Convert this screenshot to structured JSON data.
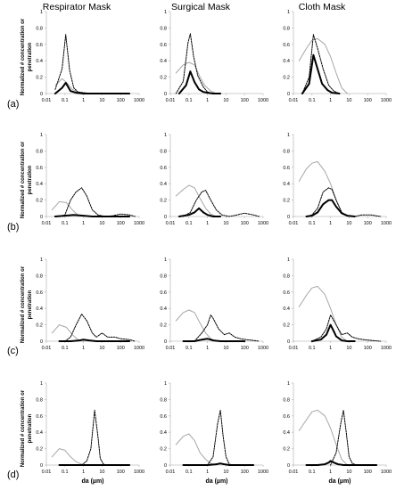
{
  "columns": [
    "Respirator Mask",
    "Surgical Mask",
    "Cloth Mask"
  ],
  "row_labels": [
    "(a)",
    "(b)",
    "(c)",
    "(d)"
  ],
  "ylabel": "Normalized # concentration or penetration",
  "xlabel": "da (µm)",
  "x_ticks": [
    "0.01",
    "0.1",
    "1",
    "10",
    "100",
    "1000"
  ],
  "y_ticks": [
    "0",
    "0.2",
    "0.4",
    "0.6",
    "0.8",
    "1"
  ],
  "colors": {
    "gray": "#a6a6a6",
    "dotted": "#000000",
    "black": "#000000",
    "axis": "#bfbfbf"
  },
  "chart_data": [
    {
      "row": 0,
      "col": 0,
      "type": "line",
      "title": "Respirator Mask",
      "xlabel": "",
      "ylabel": "Normalized # concentration or penetration",
      "xscale": "log",
      "xlim": [
        0.01,
        1000
      ],
      "ylim": [
        0,
        1
      ],
      "series": [
        {
          "style": "gray",
          "x": [
            0.03,
            0.07,
            0.13,
            0.25,
            0.5,
            1,
            3
          ],
          "y": [
            0.1,
            0.18,
            0.13,
            0.05,
            0.02,
            0.005,
            0
          ]
        },
        {
          "style": "dotted",
          "x": [
            0.03,
            0.07,
            0.11,
            0.18,
            0.3,
            0.5,
            1,
            3
          ],
          "y": [
            0.05,
            0.3,
            0.72,
            0.28,
            0.07,
            0.02,
            0.01,
            0
          ]
        },
        {
          "style": "black",
          "x": [
            0.03,
            0.07,
            0.11,
            0.2,
            0.4,
            1,
            3,
            30,
            300
          ],
          "y": [
            0,
            0.07,
            0.13,
            0.03,
            0.01,
            0,
            0,
            0,
            0
          ]
        }
      ]
    },
    {
      "row": 0,
      "col": 1,
      "type": "line",
      "title": "Surgical Mask",
      "xlabel": "",
      "ylabel": "Normalized # concentration or penetration",
      "xscale": "log",
      "xlim": [
        0.01,
        1000
      ],
      "ylim": [
        0,
        1
      ],
      "series": [
        {
          "style": "gray",
          "x": [
            0.02,
            0.05,
            0.1,
            0.2,
            0.4,
            0.7,
            1.5,
            3
          ],
          "y": [
            0.25,
            0.35,
            0.38,
            0.35,
            0.2,
            0.1,
            0.03,
            0
          ]
        },
        {
          "style": "dotted",
          "x": [
            0.02,
            0.05,
            0.09,
            0.12,
            0.18,
            0.3,
            0.6,
            1,
            2
          ],
          "y": [
            0,
            0.15,
            0.62,
            0.73,
            0.45,
            0.22,
            0.08,
            0.02,
            0
          ]
        },
        {
          "style": "black",
          "x": [
            0.03,
            0.07,
            0.12,
            0.2,
            0.35,
            0.6,
            1,
            2,
            5
          ],
          "y": [
            0,
            0.1,
            0.27,
            0.14,
            0.05,
            0.02,
            0.01,
            0,
            0
          ]
        }
      ]
    },
    {
      "row": 0,
      "col": 2,
      "type": "line",
      "title": "Cloth Mask",
      "xlabel": "",
      "ylabel": "Normalized # concentration or penetration",
      "xscale": "log",
      "xlim": [
        0.01,
        1000
      ],
      "ylim": [
        0,
        1
      ],
      "series": [
        {
          "style": "gray",
          "x": [
            0.02,
            0.05,
            0.1,
            0.2,
            0.5,
            1,
            2,
            4,
            8
          ],
          "y": [
            0.4,
            0.55,
            0.65,
            0.67,
            0.6,
            0.45,
            0.25,
            0.07,
            0
          ]
        },
        {
          "style": "dotted",
          "x": [
            0.03,
            0.07,
            0.12,
            0.2,
            0.4,
            0.8,
            1.5,
            3
          ],
          "y": [
            0,
            0.2,
            0.72,
            0.55,
            0.3,
            0.1,
            0.03,
            0
          ]
        },
        {
          "style": "black",
          "x": [
            0.03,
            0.07,
            0.12,
            0.2,
            0.35,
            0.7,
            1.2,
            3
          ],
          "y": [
            0,
            0.12,
            0.47,
            0.3,
            0.12,
            0.04,
            0.01,
            0
          ]
        }
      ]
    },
    {
      "row": 1,
      "col": 0,
      "type": "line",
      "title": "Respirator Mask",
      "xlabel": "",
      "ylabel": "Normalized # concentration or penetration",
      "xscale": "log",
      "xlim": [
        0.01,
        1000
      ],
      "ylim": [
        0,
        1
      ],
      "series": [
        {
          "style": "gray",
          "x": [
            0.02,
            0.05,
            0.12,
            0.25,
            0.5,
            1
          ],
          "y": [
            0.08,
            0.18,
            0.17,
            0.08,
            0.02,
            0
          ]
        },
        {
          "style": "dotted",
          "x": [
            0.05,
            0.1,
            0.2,
            0.4,
            0.8,
            1.5,
            3,
            6,
            15,
            40,
            100,
            300,
            600
          ],
          "y": [
            0,
            0.02,
            0.2,
            0.3,
            0.35,
            0.25,
            0.08,
            0.02,
            0,
            0.01,
            0.03,
            0.02,
            0
          ]
        },
        {
          "style": "black",
          "x": [
            0.03,
            0.1,
            0.3,
            1,
            3,
            10,
            30,
            100,
            300
          ],
          "y": [
            0,
            0.01,
            0.02,
            0.01,
            0,
            0,
            0,
            0,
            0
          ]
        }
      ]
    },
    {
      "row": 1,
      "col": 1,
      "type": "line",
      "title": "Surgical Mask",
      "xlabel": "",
      "ylabel": "Normalized # concentration or penetration",
      "xscale": "log",
      "xlim": [
        0.01,
        1000
      ],
      "ylim": [
        0,
        1
      ],
      "series": [
        {
          "style": "gray",
          "x": [
            0.02,
            0.05,
            0.1,
            0.2,
            0.4,
            0.8,
            1.5,
            3
          ],
          "y": [
            0.25,
            0.33,
            0.38,
            0.35,
            0.22,
            0.1,
            0.03,
            0
          ]
        },
        {
          "style": "dotted",
          "x": [
            0.05,
            0.12,
            0.25,
            0.5,
            0.8,
            1.5,
            3,
            6,
            15,
            40,
            100,
            300,
            600
          ],
          "y": [
            0,
            0.05,
            0.2,
            0.3,
            0.32,
            0.2,
            0.08,
            0.02,
            0,
            0.02,
            0.04,
            0.02,
            0
          ]
        },
        {
          "style": "black",
          "x": [
            0.03,
            0.1,
            0.2,
            0.35,
            0.6,
            1,
            2,
            5
          ],
          "y": [
            0,
            0.02,
            0.05,
            0.1,
            0.05,
            0.02,
            0,
            0
          ]
        }
      ]
    },
    {
      "row": 1,
      "col": 2,
      "type": "line",
      "title": "Cloth Mask",
      "xlabel": "",
      "ylabel": "Normalized # concentration or penetration",
      "xscale": "log",
      "xlim": [
        0.01,
        1000
      ],
      "ylim": [
        0,
        1
      ],
      "series": [
        {
          "style": "gray",
          "x": [
            0.02,
            0.05,
            0.1,
            0.2,
            0.5,
            1,
            2,
            4,
            8
          ],
          "y": [
            0.43,
            0.58,
            0.65,
            0.67,
            0.55,
            0.4,
            0.2,
            0.05,
            0
          ]
        },
        {
          "style": "dotted",
          "x": [
            0.05,
            0.1,
            0.2,
            0.4,
            0.8,
            1.2,
            2,
            4,
            8,
            20,
            50,
            150,
            500
          ],
          "y": [
            0,
            0.02,
            0.1,
            0.3,
            0.35,
            0.33,
            0.2,
            0.05,
            0.01,
            0,
            0.02,
            0.02,
            0
          ]
        },
        {
          "style": "black",
          "x": [
            0.05,
            0.1,
            0.2,
            0.4,
            0.8,
            1.2,
            2,
            4,
            8,
            20
          ],
          "y": [
            0,
            0.01,
            0.05,
            0.15,
            0.2,
            0.2,
            0.12,
            0.04,
            0.01,
            0
          ]
        }
      ]
    },
    {
      "row": 2,
      "col": 0,
      "type": "line",
      "title": "Respirator Mask",
      "xlabel": "",
      "ylabel": "Normalized # concentration or penetration",
      "xscale": "log",
      "xlim": [
        0.01,
        1000
      ],
      "ylim": [
        0,
        1
      ],
      "series": [
        {
          "style": "gray",
          "x": [
            0.02,
            0.05,
            0.12,
            0.25,
            0.5,
            1
          ],
          "y": [
            0.1,
            0.2,
            0.17,
            0.08,
            0.02,
            0
          ]
        },
        {
          "style": "dotted",
          "x": [
            0.1,
            0.2,
            0.4,
            0.8,
            1.5,
            3,
            5,
            10,
            20,
            50,
            100,
            300,
            600
          ],
          "y": [
            0,
            0.05,
            0.2,
            0.33,
            0.25,
            0.1,
            0.05,
            0.1,
            0.05,
            0.05,
            0.03,
            0.02,
            0
          ]
        },
        {
          "style": "black",
          "x": [
            0.05,
            0.2,
            0.6,
            1,
            2,
            5,
            10,
            30,
            100,
            300
          ],
          "y": [
            0,
            0,
            0.01,
            0.02,
            0.01,
            0,
            0,
            0,
            0,
            0
          ]
        }
      ]
    },
    {
      "row": 2,
      "col": 1,
      "type": "line",
      "title": "Surgical Mask",
      "xlabel": "",
      "ylabel": "Normalized # concentration or penetration",
      "xscale": "log",
      "xlim": [
        0.01,
        1000
      ],
      "ylim": [
        0,
        1
      ],
      "series": [
        {
          "style": "gray",
          "x": [
            0.02,
            0.05,
            0.1,
            0.2,
            0.4,
            0.8,
            1.5,
            3
          ],
          "y": [
            0.25,
            0.35,
            0.38,
            0.35,
            0.22,
            0.1,
            0.03,
            0
          ]
        },
        {
          "style": "dotted",
          "x": [
            0.2,
            0.5,
            1,
            1.5,
            2,
            4,
            8,
            15,
            30,
            60,
            120,
            300,
            600
          ],
          "y": [
            0,
            0.1,
            0.2,
            0.32,
            0.28,
            0.15,
            0.08,
            0.1,
            0.05,
            0.03,
            0.02,
            0.01,
            0
          ]
        },
        {
          "style": "black",
          "x": [
            0.05,
            0.2,
            0.5,
            1,
            2,
            5,
            10,
            30,
            100
          ],
          "y": [
            0,
            0,
            0.02,
            0.03,
            0.01,
            0,
            0,
            0,
            0
          ]
        }
      ]
    },
    {
      "row": 2,
      "col": 2,
      "type": "line",
      "title": "Cloth Mask",
      "xlabel": "",
      "ylabel": "Normalized # concentration or penetration",
      "xscale": "log",
      "xlim": [
        0.01,
        1000
      ],
      "ylim": [
        0,
        1
      ],
      "series": [
        {
          "style": "gray",
          "x": [
            0.02,
            0.05,
            0.1,
            0.2,
            0.5,
            1,
            2,
            4,
            8
          ],
          "y": [
            0.42,
            0.56,
            0.65,
            0.67,
            0.57,
            0.4,
            0.2,
            0.05,
            0
          ]
        },
        {
          "style": "dotted",
          "x": [
            0.1,
            0.3,
            0.6,
            1,
            1.5,
            2,
            4,
            8,
            15,
            30,
            60,
            150,
            500
          ],
          "y": [
            0,
            0.05,
            0.15,
            0.32,
            0.25,
            0.2,
            0.08,
            0.1,
            0.05,
            0.03,
            0.02,
            0.01,
            0
          ]
        },
        {
          "style": "black",
          "x": [
            0.1,
            0.3,
            0.6,
            1,
            1.5,
            2,
            4,
            8,
            20
          ],
          "y": [
            0,
            0.02,
            0.08,
            0.2,
            0.12,
            0.06,
            0.01,
            0,
            0
          ]
        }
      ]
    },
    {
      "row": 3,
      "col": 0,
      "type": "line",
      "title": "Respirator Mask",
      "xlabel": "da (µm)",
      "ylabel": "Normalized # concentration or penetration",
      "xscale": "log",
      "xlim": [
        0.01,
        1000
      ],
      "ylim": [
        0,
        1
      ],
      "series": [
        {
          "style": "gray",
          "x": [
            0.02,
            0.05,
            0.1,
            0.2,
            0.4,
            0.8,
            1.2
          ],
          "y": [
            0.1,
            0.2,
            0.18,
            0.1,
            0.04,
            0.01,
            0
          ]
        },
        {
          "style": "dotted",
          "x": [
            0.8,
            1.5,
            2.5,
            4,
            6,
            8,
            12,
            20
          ],
          "y": [
            0,
            0.05,
            0.2,
            0.67,
            0.35,
            0.08,
            0.01,
            0
          ]
        },
        {
          "style": "black",
          "x": [
            0.05,
            0.2,
            1,
            4,
            10,
            30,
            100,
            300
          ],
          "y": [
            0,
            0,
            0,
            0,
            0,
            0,
            0,
            0
          ]
        }
      ]
    },
    {
      "row": 3,
      "col": 1,
      "type": "line",
      "title": "Surgical Mask",
      "xlabel": "da (µm)",
      "ylabel": "Normalized # concentration or penetration",
      "xscale": "log",
      "xlim": [
        0.01,
        1000
      ],
      "ylim": [
        0,
        1
      ],
      "series": [
        {
          "style": "gray",
          "x": [
            0.02,
            0.05,
            0.1,
            0.2,
            0.4,
            0.8,
            1.5,
            3
          ],
          "y": [
            0.25,
            0.35,
            0.38,
            0.3,
            0.15,
            0.07,
            0.02,
            0
          ]
        },
        {
          "style": "dotted",
          "x": [
            1,
            2,
            3.5,
            5,
            7,
            10,
            15,
            25
          ],
          "y": [
            0,
            0.1,
            0.5,
            0.67,
            0.35,
            0.1,
            0.01,
            0
          ]
        },
        {
          "style": "black",
          "x": [
            0.05,
            0.2,
            1,
            3,
            5,
            8,
            15,
            50,
            300
          ],
          "y": [
            0,
            0,
            0,
            0.01,
            0.02,
            0.01,
            0,
            0,
            0
          ]
        }
      ]
    },
    {
      "row": 3,
      "col": 2,
      "type": "line",
      "title": "Cloth Mask",
      "xlabel": "da (µm)",
      "ylabel": "Normalized # concentration or penetration",
      "xscale": "log",
      "xlim": [
        0.01,
        1000
      ],
      "ylim": [
        0,
        1
      ],
      "series": [
        {
          "style": "gray",
          "x": [
            0.02,
            0.05,
            0.1,
            0.2,
            0.5,
            1,
            2,
            4,
            8
          ],
          "y": [
            0.42,
            0.55,
            0.65,
            0.67,
            0.6,
            0.45,
            0.25,
            0.07,
            0
          ]
        },
        {
          "style": "dotted",
          "x": [
            1,
            2,
            3.5,
            5,
            7,
            10,
            15,
            25
          ],
          "y": [
            0,
            0.15,
            0.5,
            0.67,
            0.4,
            0.1,
            0.02,
            0
          ]
        },
        {
          "style": "black",
          "x": [
            0.05,
            0.2,
            0.5,
            0.8,
            1,
            1.5,
            2.5,
            5,
            20,
            300
          ],
          "y": [
            0,
            0,
            0.01,
            0.03,
            0.05,
            0.03,
            0.01,
            0,
            0,
            0
          ]
        }
      ]
    }
  ]
}
